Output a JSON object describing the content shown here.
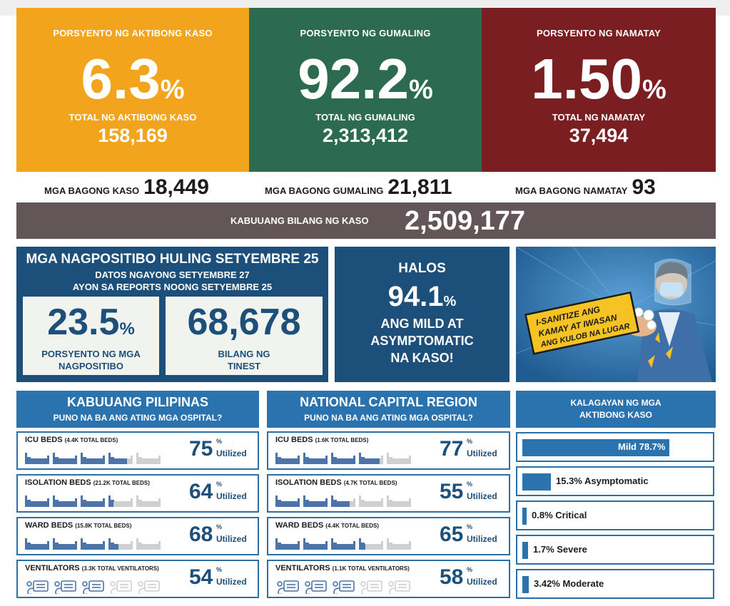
{
  "stats": [
    {
      "label": "PORSYENTO NG AKTIBONG KASO",
      "percent": "6.3",
      "percent_sign": "%",
      "sub_label": "TOTAL NG AKTIBONG KASO",
      "total": "158,169",
      "color": "#f2a41d"
    },
    {
      "label": "PORSYENTO NG GUMALING",
      "percent": "92.2",
      "percent_sign": "%",
      "sub_label": "TOTAL NG GUMALING",
      "total": "2,313,412",
      "color": "#2c6b52"
    },
    {
      "label": "PORSYENTO NG NAMATAY",
      "percent": "1.50",
      "percent_sign": "%",
      "sub_label": "TOTAL NG NAMATAY",
      "total": "37,494",
      "color": "#7a1e22"
    }
  ],
  "new_counts": [
    {
      "label": "MGA BAGONG KASO",
      "value": "18,449"
    },
    {
      "label": "MGA BAGONG GUMALING",
      "value": "21,811"
    },
    {
      "label": "MGA BAGONG NAMATAY",
      "value": "93"
    }
  ],
  "total_cases": {
    "label": "KABUUANG BILANG NG KASO",
    "value": "2,509,177"
  },
  "positivity": {
    "title": "MGA NAGPOSITIBO HULING SETYEMBRE 25",
    "line1": "DATOS NGAYONG SETYEMBRE 27",
    "line2": "AYON SA REPORTS NOONG SETYEMBRE 25",
    "rate_value": "23.5",
    "rate_sign": "%",
    "rate_label_1": "PORSYENTO NG MGA",
    "rate_label_2": "NAGPOSITIBO",
    "tested_value": "68,678",
    "tested_label_1": "BILANG NG",
    "tested_label_2": "TINEST"
  },
  "mild": {
    "line1": "HALOS",
    "value": "94.1",
    "sign": "%",
    "line2": "ANG MILD AT",
    "line3": "ASYMPTOMATIC",
    "line4": "NA KASO!"
  },
  "poster": {
    "line1": "I-SANITIZE ANG",
    "line2": "KAMAY AT IWASAN",
    "line3": "ANG KULOB NA LUGAR"
  },
  "hospitals": [
    {
      "title": "KABUUANG PILIPINAS",
      "subtitle": "PUNO NA BA ANG ATING MGA OSPITAL?",
      "rows": [
        {
          "label": "ICU BEDS",
          "detail": "(4.4K TOTAL BEDS)",
          "value": "75",
          "utilization": 75,
          "icon": "bed-icon"
        },
        {
          "label": "ISOLATION BEDS",
          "detail": "(21.2K TOTAL BEDS)",
          "value": "64",
          "utilization": 64,
          "icon": "bed-icon"
        },
        {
          "label": "WARD BEDS",
          "detail": "(15.8K TOTAL BEDS)",
          "value": "68",
          "utilization": 68,
          "icon": "bed-icon"
        },
        {
          "label": "VENTILATORS",
          "detail": "(3.3K TOTAL VENTILATORS)",
          "value": "54",
          "utilization": 54,
          "icon": "ventilator-icon"
        }
      ]
    },
    {
      "title": "NATIONAL CAPITAL REGION",
      "subtitle": "PUNO NA BA ANG ATING MGA OSPITAL?",
      "rows": [
        {
          "label": "ICU BEDS",
          "detail": "(1.6K TOTAL BEDS)",
          "value": "77",
          "utilization": 77,
          "icon": "bed-icon"
        },
        {
          "label": "ISOLATION BEDS",
          "detail": "(4.7K TOTAL BEDS)",
          "value": "55",
          "utilization": 55,
          "icon": "bed-icon"
        },
        {
          "label": "WARD BEDS",
          "detail": "(4.4K TOTAL BEDS)",
          "value": "65",
          "utilization": 65,
          "icon": "bed-icon"
        },
        {
          "label": "VENTILATORS",
          "detail": "(1.1K TOTAL VENTILATORS)",
          "value": "58",
          "utilization": 58,
          "icon": "ventilator-icon"
        }
      ]
    }
  ],
  "percent_sign": "%",
  "utilized_label": "Utilized",
  "active_status": {
    "title_1": "KALAGAYAN NG MGA",
    "title_2": "AKTIBONG KASO",
    "items": [
      {
        "label": "Mild 78.7%",
        "value": 78.7
      },
      {
        "label": "15.3% Asymptomatic",
        "value": 15.3
      },
      {
        "label": "0.8% Critical",
        "value": 0.8
      },
      {
        "label": "1.7% Severe",
        "value": 1.7
      },
      {
        "label": "3.42% Moderate",
        "value": 3.42
      }
    ]
  },
  "colors": {
    "blue_dark": "#1d4f7b",
    "blue_light": "#2b73ae",
    "bar_filled": "#4a74aa",
    "bar_empty": "#cfcfcf",
    "total_bar": "#625658"
  }
}
